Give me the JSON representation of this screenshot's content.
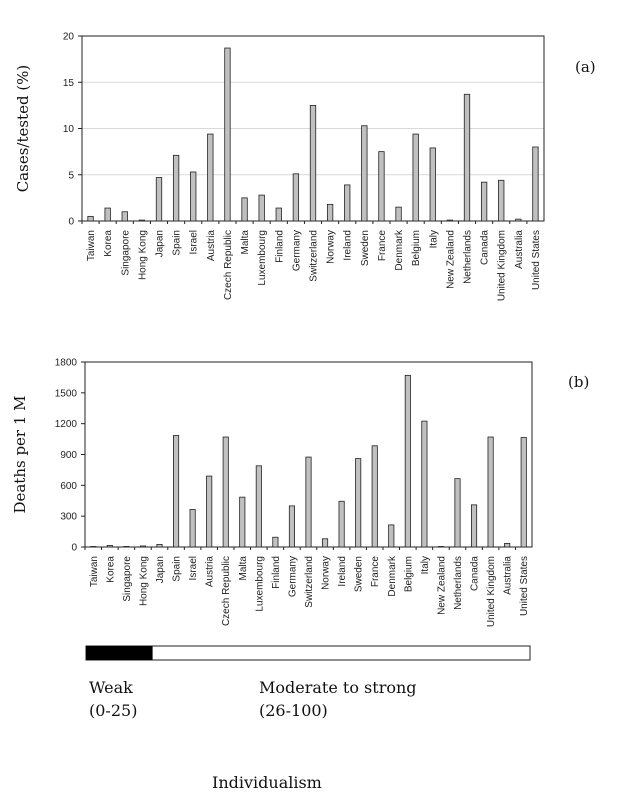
{
  "chart_data": [
    {
      "type": "bar",
      "panel_label": "(a)",
      "ylabel": "Cases/tested (%)",
      "ylim": [
        0,
        20
      ],
      "yticks": [
        0,
        5,
        10,
        15,
        20
      ],
      "grid": true,
      "categories": [
        "Taiwan",
        "Korea",
        "Singapore",
        "Hong Kong",
        "Japan",
        "Spain",
        "Israel",
        "Austria",
        "Czech Republic",
        "Malta",
        "Luxembourg",
        "Finland",
        "Germany",
        "Switzerland",
        "Norway",
        "Ireland",
        "Sweden",
        "France",
        "Denmark",
        "Belgium",
        "Italy",
        "New Zealand",
        "Netherlands",
        "Canada",
        "United Kingdom",
        "Australia",
        "United States"
      ],
      "values": [
        0.5,
        1.4,
        1.0,
        0.1,
        4.7,
        7.1,
        5.3,
        9.4,
        18.7,
        2.5,
        2.8,
        1.4,
        5.1,
        12.5,
        1.8,
        3.9,
        10.3,
        7.5,
        1.5,
        9.4,
        7.9,
        0.1,
        13.7,
        4.2,
        4.4,
        0.2,
        8.0
      ]
    },
    {
      "type": "bar",
      "panel_label": "(b)",
      "ylabel": "Deaths per 1 M",
      "ylim": [
        0,
        1800
      ],
      "yticks": [
        0,
        300,
        600,
        900,
        1200,
        1500,
        1800
      ],
      "grid": false,
      "categories": [
        "Taiwan",
        "Korea",
        "Singapore",
        "Hong Kong",
        "Japan",
        "Spain",
        "Israel",
        "Austria",
        "Czech Republic",
        "Malta",
        "Luxembourg",
        "Finland",
        "Germany",
        "Switzerland",
        "Norway",
        "Ireland",
        "Sweden",
        "France",
        "Denmark",
        "Belgium",
        "Italy",
        "New Zealand",
        "Netherlands",
        "Canada",
        "United Kingdom",
        "Australia",
        "United States"
      ],
      "values": [
        5,
        15,
        5,
        10,
        25,
        1085,
        365,
        690,
        1070,
        485,
        790,
        95,
        400,
        875,
        80,
        445,
        860,
        985,
        215,
        1670,
        1225,
        5,
        665,
        410,
        1070,
        35,
        1065
      ]
    }
  ],
  "legend_bar": {
    "weak_fraction": 0.15
  },
  "labels": {
    "weak": "Weak",
    "weak_range": "(0-25)",
    "strong": "Moderate to strong",
    "strong_range": "(26-100)",
    "axis_title": "Individualism"
  },
  "colors": {
    "bar_fill": "#c0c0c0",
    "bar_stroke": "#222222",
    "grid": "#d9d9d9",
    "weak_fill": "#000000"
  }
}
